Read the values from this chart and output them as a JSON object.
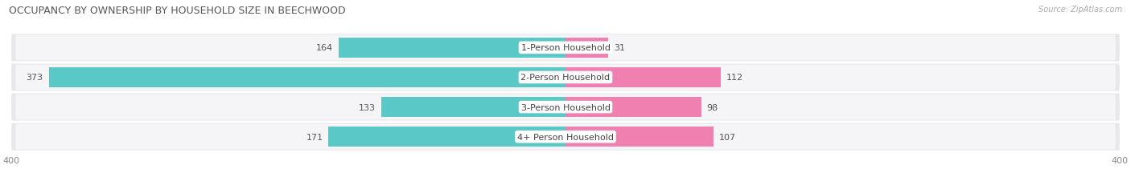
{
  "title": "OCCUPANCY BY OWNERSHIP BY HOUSEHOLD SIZE IN BEECHWOOD",
  "source": "Source: ZipAtlas.com",
  "categories": [
    "1-Person Household",
    "2-Person Household",
    "3-Person Household",
    "4+ Person Household"
  ],
  "owner_values": [
    164,
    373,
    133,
    171
  ],
  "renter_values": [
    31,
    112,
    98,
    107
  ],
  "max_axis": 400,
  "owner_color": "#5BC8C8",
  "renter_color": "#F080B0",
  "row_bg_color": "#E8E8EC",
  "row_inner_color": "#F5F5F8",
  "title_fontsize": 9,
  "axis_label_fontsize": 8,
  "bar_label_fontsize": 8,
  "category_fontsize": 8,
  "legend_fontsize": 8,
  "source_fontsize": 7
}
